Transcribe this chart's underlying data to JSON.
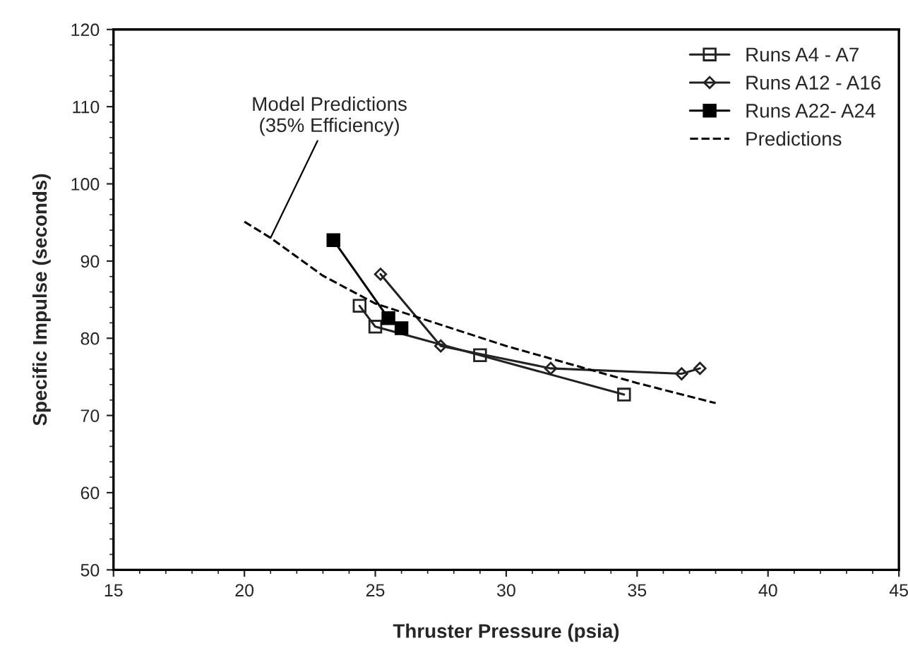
{
  "chart_data": {
    "type": "line",
    "xlabel": "Thruster Pressure (psia)",
    "ylabel": "Specific Impulse (seconds)",
    "xlim": [
      15,
      45
    ],
    "xticks": [
      15,
      20,
      25,
      30,
      35,
      40,
      45
    ],
    "ylim": [
      50,
      120
    ],
    "yticks": [
      50,
      60,
      70,
      80,
      90,
      100,
      110,
      120
    ],
    "grid": false,
    "legend": "top right",
    "series": [
      {
        "name": "Runs A4 - A7",
        "color": "#222222",
        "marker": "square",
        "line_style": "solid",
        "x": [
          24.4,
          25.0,
          29.0,
          34.5
        ],
        "values": [
          84.2,
          81.5,
          77.8,
          72.7
        ]
      },
      {
        "name": "Runs A12 - A16",
        "color": "#222222",
        "marker": "diamond",
        "line_style": "solid",
        "x": [
          25.2,
          27.5,
          31.7,
          36.7,
          37.4
        ],
        "values": [
          88.3,
          79.0,
          76.1,
          75.4,
          76.1
        ]
      },
      {
        "name": "Runs A22- A24",
        "color": "#000000",
        "marker": "square",
        "line_style": "solid",
        "x": [
          23.4,
          25.5,
          26.0
        ],
        "values": [
          92.7,
          82.6,
          81.3
        ]
      },
      {
        "name": "Predictions",
        "color": "#000000",
        "marker": "none",
        "line_style": "dashed",
        "x": [
          20,
          21,
          23,
          25,
          30,
          35,
          38
        ],
        "values": [
          95.1,
          93.0,
          88.1,
          84.5,
          79.0,
          74.2,
          71.6
        ]
      }
    ],
    "annotations": [
      {
        "text": "Model Predictions\n(35% Efficiency)",
        "x": 21,
        "y": 93
      }
    ]
  }
}
